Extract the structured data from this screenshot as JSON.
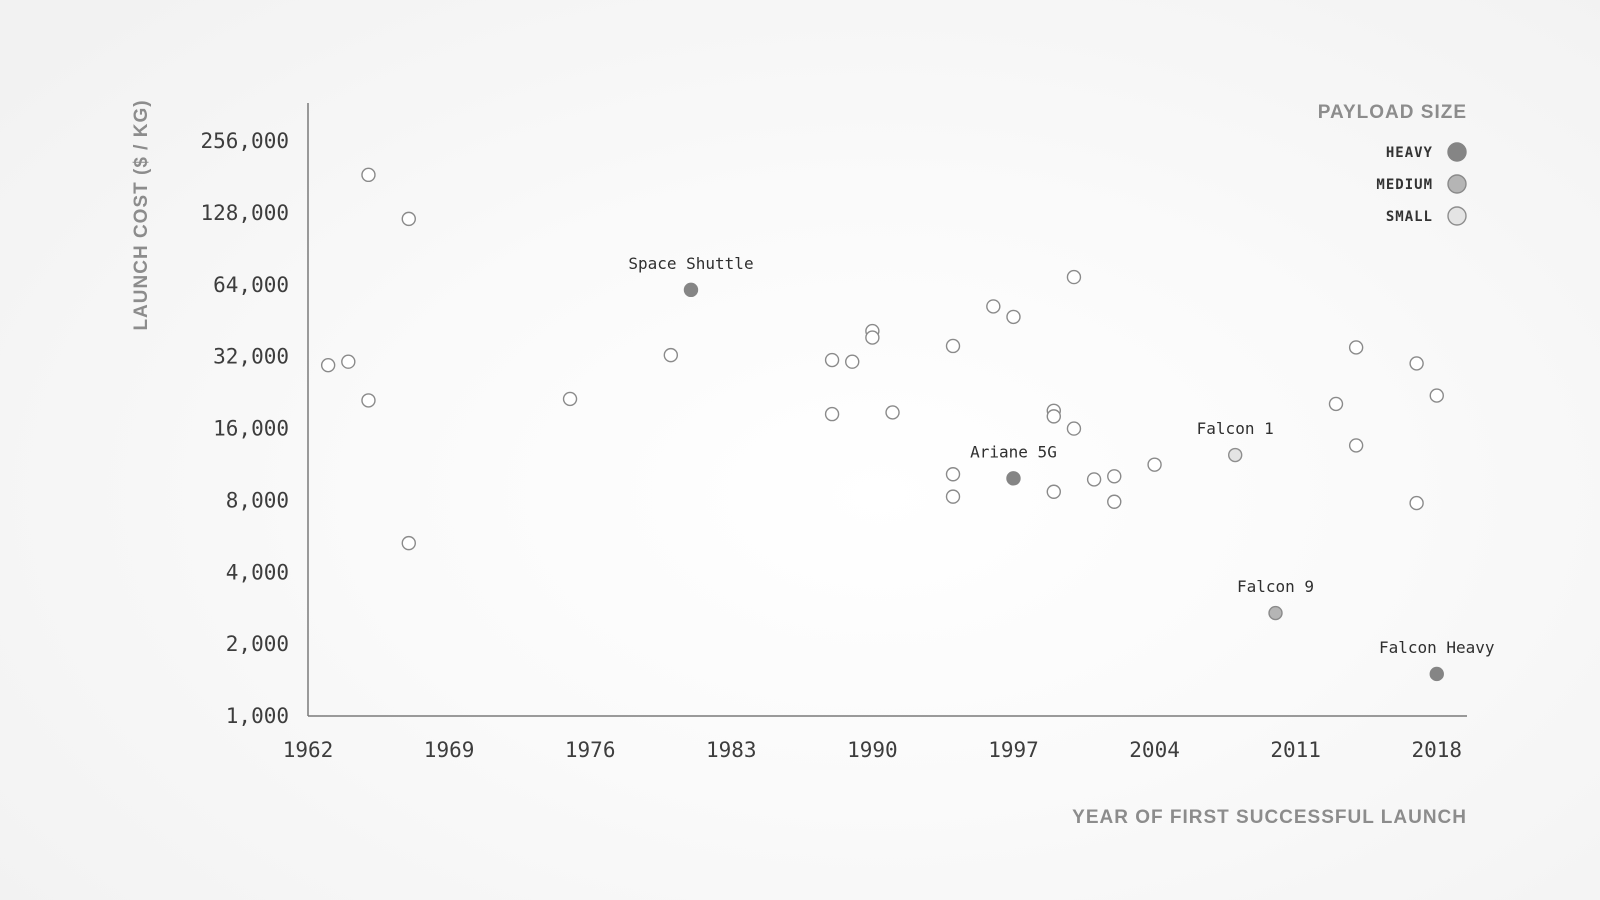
{
  "chart_data": {
    "type": "scatter",
    "title": "",
    "xlabel": "YEAR OF FIRST SUCCESSFUL LAUNCH",
    "ylabel": "LAUNCH COST ($ / KG)",
    "xlim": [
      1962,
      2019.5
    ],
    "ylim": [
      1000,
      370000
    ],
    "yscale": "log2",
    "x_ticks": [
      "1962",
      "1969",
      "1976",
      "1983",
      "1990",
      "1997",
      "2004",
      "2011",
      "2018"
    ],
    "x_tick_values": [
      1962,
      1969,
      1976,
      1983,
      1990,
      1997,
      2004,
      2011,
      2018
    ],
    "y_ticks": [
      "1,000",
      "2,000",
      "4,000",
      "8,000",
      "16,000",
      "32,000",
      "64,000",
      "128,000",
      "256,000"
    ],
    "y_tick_values": [
      1000,
      2000,
      4000,
      8000,
      16000,
      32000,
      64000,
      128000,
      256000
    ],
    "grid": false,
    "legend": {
      "title": "PAYLOAD SIZE",
      "position": "top-right",
      "entries": [
        {
          "name": "HEAVY",
          "category": "heavy"
        },
        {
          "name": "MEDIUM",
          "category": "medium"
        },
        {
          "name": "SMALL",
          "category": "small"
        }
      ]
    },
    "category_styles": {
      "heavy": {
        "fill": "#858585",
        "stroke": "#858585"
      },
      "medium": {
        "fill": "#b5b5b5",
        "stroke": "#8a8a8a"
      },
      "small": {
        "fill": "#e4e4e4",
        "stroke": "#8e8e8e"
      },
      "other": {
        "fill": "#ffffff",
        "stroke": "#8a8a8a"
      }
    },
    "points": [
      {
        "x": 1963,
        "y": 29500,
        "category": "other",
        "label": ""
      },
      {
        "x": 1964,
        "y": 30500,
        "category": "other",
        "label": ""
      },
      {
        "x": 1965,
        "y": 21000,
        "category": "other",
        "label": ""
      },
      {
        "x": 1965,
        "y": 185000,
        "category": "other",
        "label": ""
      },
      {
        "x": 1967,
        "y": 121000,
        "category": "other",
        "label": ""
      },
      {
        "x": 1967,
        "y": 5300,
        "category": "other",
        "label": ""
      },
      {
        "x": 1975,
        "y": 21300,
        "category": "other",
        "label": ""
      },
      {
        "x": 1980,
        "y": 32500,
        "category": "other",
        "label": ""
      },
      {
        "x": 1981,
        "y": 61000,
        "category": "heavy",
        "label": "Space Shuttle"
      },
      {
        "x": 1988,
        "y": 31000,
        "category": "other",
        "label": ""
      },
      {
        "x": 1988,
        "y": 18400,
        "category": "other",
        "label": ""
      },
      {
        "x": 1989,
        "y": 30500,
        "category": "other",
        "label": ""
      },
      {
        "x": 1990,
        "y": 41000,
        "category": "other",
        "label": ""
      },
      {
        "x": 1990,
        "y": 38500,
        "category": "other",
        "label": ""
      },
      {
        "x": 1991,
        "y": 18700,
        "category": "other",
        "label": ""
      },
      {
        "x": 1994,
        "y": 35500,
        "category": "other",
        "label": ""
      },
      {
        "x": 1994,
        "y": 10300,
        "category": "other",
        "label": ""
      },
      {
        "x": 1994,
        "y": 8300,
        "category": "other",
        "label": ""
      },
      {
        "x": 1996,
        "y": 52000,
        "category": "other",
        "label": ""
      },
      {
        "x": 1997,
        "y": 47000,
        "category": "other",
        "label": ""
      },
      {
        "x": 1997,
        "y": 9900,
        "category": "heavy",
        "label": "Ariane 5G"
      },
      {
        "x": 1999,
        "y": 19000,
        "category": "other",
        "label": ""
      },
      {
        "x": 1999,
        "y": 18000,
        "category": "other",
        "label": ""
      },
      {
        "x": 1999,
        "y": 8700,
        "category": "other",
        "label": ""
      },
      {
        "x": 2000,
        "y": 69000,
        "category": "other",
        "label": ""
      },
      {
        "x": 2000,
        "y": 16000,
        "category": "other",
        "label": ""
      },
      {
        "x": 2001,
        "y": 9800,
        "category": "other",
        "label": ""
      },
      {
        "x": 2002,
        "y": 10100,
        "category": "other",
        "label": ""
      },
      {
        "x": 2002,
        "y": 7900,
        "category": "other",
        "label": ""
      },
      {
        "x": 2004,
        "y": 11300,
        "category": "other",
        "label": ""
      },
      {
        "x": 2008,
        "y": 12400,
        "category": "small",
        "label": "Falcon 1"
      },
      {
        "x": 2010,
        "y": 2700,
        "category": "medium",
        "label": "Falcon 9"
      },
      {
        "x": 2013,
        "y": 20300,
        "category": "other",
        "label": ""
      },
      {
        "x": 2014,
        "y": 35000,
        "category": "other",
        "label": ""
      },
      {
        "x": 2014,
        "y": 13600,
        "category": "other",
        "label": ""
      },
      {
        "x": 2017,
        "y": 30000,
        "category": "other",
        "label": ""
      },
      {
        "x": 2017,
        "y": 7800,
        "category": "other",
        "label": ""
      },
      {
        "x": 2018,
        "y": 22000,
        "category": "other",
        "label": ""
      },
      {
        "x": 2018,
        "y": 1500,
        "category": "heavy",
        "label": "Falcon Heavy"
      }
    ]
  }
}
